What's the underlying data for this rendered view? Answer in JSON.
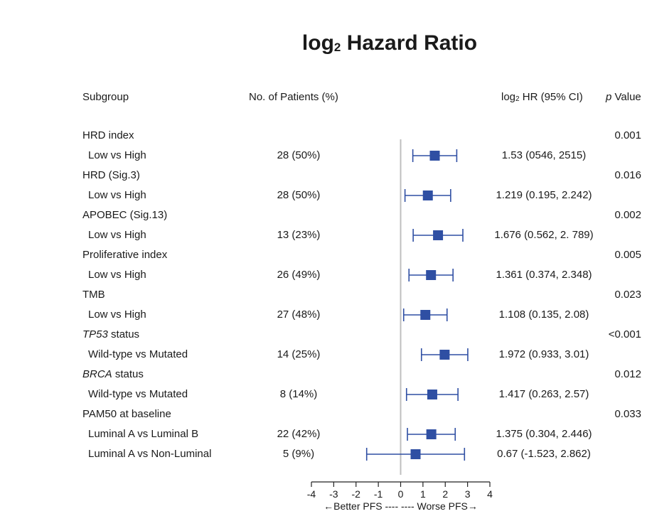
{
  "chart_data": {
    "type": "forest",
    "title_main": "log",
    "title_sub": "2",
    "title_rest": " Hazard Ratio",
    "headers": {
      "subgroup": "Subgroup",
      "patients": "No. of Patients (%)",
      "hr_main": "log",
      "hr_sub": "2",
      "hr_rest": " HR (95% CI)",
      "p_italic": "p",
      "p_rest": " Value"
    },
    "xlim": [
      -4,
      4
    ],
    "xticks": [
      -4,
      -3,
      -2,
      -1,
      0,
      1,
      2,
      3,
      4
    ],
    "xlabel": "←Better PFS ---- ---- Worse PFS→",
    "marker_color": "#2f4fa3",
    "ref_line_color": "#bfbfbf",
    "groups": [
      {
        "label": "HRD index",
        "italic": "",
        "p": "0.001",
        "rows": [
          {
            "label": "Low vs High",
            "patients": "28 (50%)",
            "hr": 1.53,
            "lo": 0.546,
            "hi": 2.515,
            "text": "1.53 (0546, 2515)"
          }
        ]
      },
      {
        "label": "HRD (Sig.3)",
        "italic": "",
        "p": "0.016",
        "rows": [
          {
            "label": "Low vs High",
            "patients": "28 (50%)",
            "hr": 1.219,
            "lo": 0.195,
            "hi": 2.242,
            "text": "1.219 (0.195, 2.242)"
          }
        ]
      },
      {
        "label": "APOBEC (Sig.13)",
        "italic": "",
        "p": "0.002",
        "rows": [
          {
            "label": "Low vs High",
            "patients": "13 (23%)",
            "hr": 1.676,
            "lo": 0.562,
            "hi": 2.789,
            "text": "1.676 (0.562, 2. 789)"
          }
        ]
      },
      {
        "label": "Proliferative index",
        "italic": "",
        "p": "0.005",
        "rows": [
          {
            "label": "Low vs High",
            "patients": "26 (49%)",
            "hr": 1.361,
            "lo": 0.374,
            "hi": 2.348,
            "text": "1.361 (0.374, 2.348)"
          }
        ]
      },
      {
        "label": "TMB",
        "italic": "",
        "p": "0.023",
        "rows": [
          {
            "label": "Low vs High",
            "patients": "27 (48%)",
            "hr": 1.108,
            "lo": 0.135,
            "hi": 2.08,
            "text": "1.108 (0.135, 2.08)"
          }
        ]
      },
      {
        "label": " status",
        "italic": "TP53",
        "p": "<0.001",
        "rows": [
          {
            "label": "Wild-type vs Mutated",
            "patients": "14 (25%)",
            "hr": 1.972,
            "lo": 0.933,
            "hi": 3.01,
            "text": "1.972 (0.933, 3.01)"
          }
        ]
      },
      {
        "label": " status",
        "italic": "BRCA",
        "p": "0.012",
        "rows": [
          {
            "label": "Wild-type vs Mutated",
            "patients": "8 (14%)",
            "hr": 1.417,
            "lo": 0.263,
            "hi": 2.57,
            "text": "1.417 (0.263, 2.57)"
          }
        ]
      },
      {
        "label": "PAM50 at baseline",
        "italic": "",
        "p": "0.033",
        "rows": [
          {
            "label": "Luminal A vs Luminal B",
            "patients": "22 (42%)",
            "hr": 1.375,
            "lo": 0.304,
            "hi": 2.446,
            "text": "1.375 (0.304, 2.446)"
          },
          {
            "label": "Luminal A vs Non-Luminal",
            "patients": "5 (9%)",
            "hr": 0.67,
            "lo": -1.523,
            "hi": 2.862,
            "text": "0.67 (-1.523, 2.862)"
          }
        ]
      }
    ]
  }
}
